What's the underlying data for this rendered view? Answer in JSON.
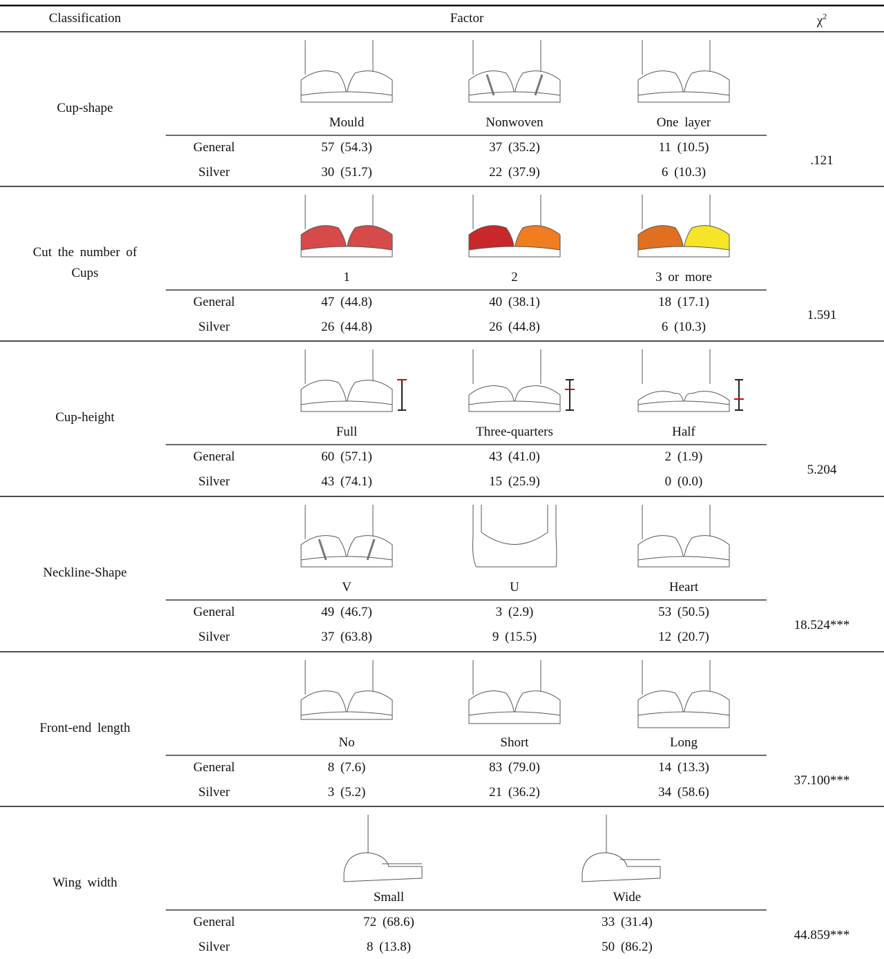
{
  "header": {
    "classification": "Classification",
    "factor": "Factor",
    "chi": "χ",
    "chi_sup": "2"
  },
  "sections": [
    {
      "classification": "Cup-shape",
      "options": [
        "Mould",
        "Nonwoven",
        "One layer"
      ],
      "rows": [
        {
          "label": "General",
          "values": [
            "57 (54.3)",
            "37 (35.2)",
            "11 (10.5)"
          ]
        },
        {
          "label": "Silver",
          "values": [
            "30 (51.7)",
            "22 (37.9)",
            "6 (10.3)"
          ]
        }
      ],
      "chi_square": ".121"
    },
    {
      "classification": "Cut the number of Cups",
      "options": [
        "1",
        "2",
        "3 or more"
      ],
      "rows": [
        {
          "label": "General",
          "values": [
            "47 (44.8)",
            "40 (38.1)",
            "18 (17.1)"
          ]
        },
        {
          "label": "Silver",
          "values": [
            "26 (44.8)",
            "26 (44.8)",
            "6 (10.3)"
          ]
        }
      ],
      "chi_square": "1.591"
    },
    {
      "classification": "Cup-height",
      "options": [
        "Full",
        "Three-quarters",
        "Half"
      ],
      "rows": [
        {
          "label": "General",
          "values": [
            "60 (57.1)",
            "43 (41.0)",
            "2 (1.9)"
          ]
        },
        {
          "label": "Silver",
          "values": [
            "43 (74.1)",
            "15 (25.9)",
            "0 (0.0)"
          ]
        }
      ],
      "chi_square": "5.204"
    },
    {
      "classification": "Neckline-Shape",
      "options": [
        "V",
        "U",
        "Heart"
      ],
      "rows": [
        {
          "label": "General",
          "values": [
            "49 (46.7)",
            "3 (2.9)",
            "53 (50.5)"
          ]
        },
        {
          "label": "Silver",
          "values": [
            "37 (63.8)",
            "9 (15.5)",
            "12 (20.7)"
          ]
        }
      ],
      "chi_square": "18.524***"
    },
    {
      "classification": "Front-end length",
      "options": [
        "No",
        "Short",
        "Long"
      ],
      "rows": [
        {
          "label": "General",
          "values": [
            "8 (7.6)",
            "83 (79.0)",
            "14 (13.3)"
          ]
        },
        {
          "label": "Silver",
          "values": [
            "3 (5.2)",
            "21 (36.2)",
            "34 (58.6)"
          ]
        }
      ],
      "chi_square": "37.100***"
    },
    {
      "classification": "Wing width",
      "options": [
        "Small",
        "Wide"
      ],
      "rows": [
        {
          "label": "General",
          "values": [
            "72 (68.6)",
            "33 (31.4)"
          ]
        },
        {
          "label": "Silver",
          "values": [
            "8 (13.8)",
            "50 (86.2)"
          ]
        }
      ],
      "chi_square": "44.859***"
    }
  ]
}
